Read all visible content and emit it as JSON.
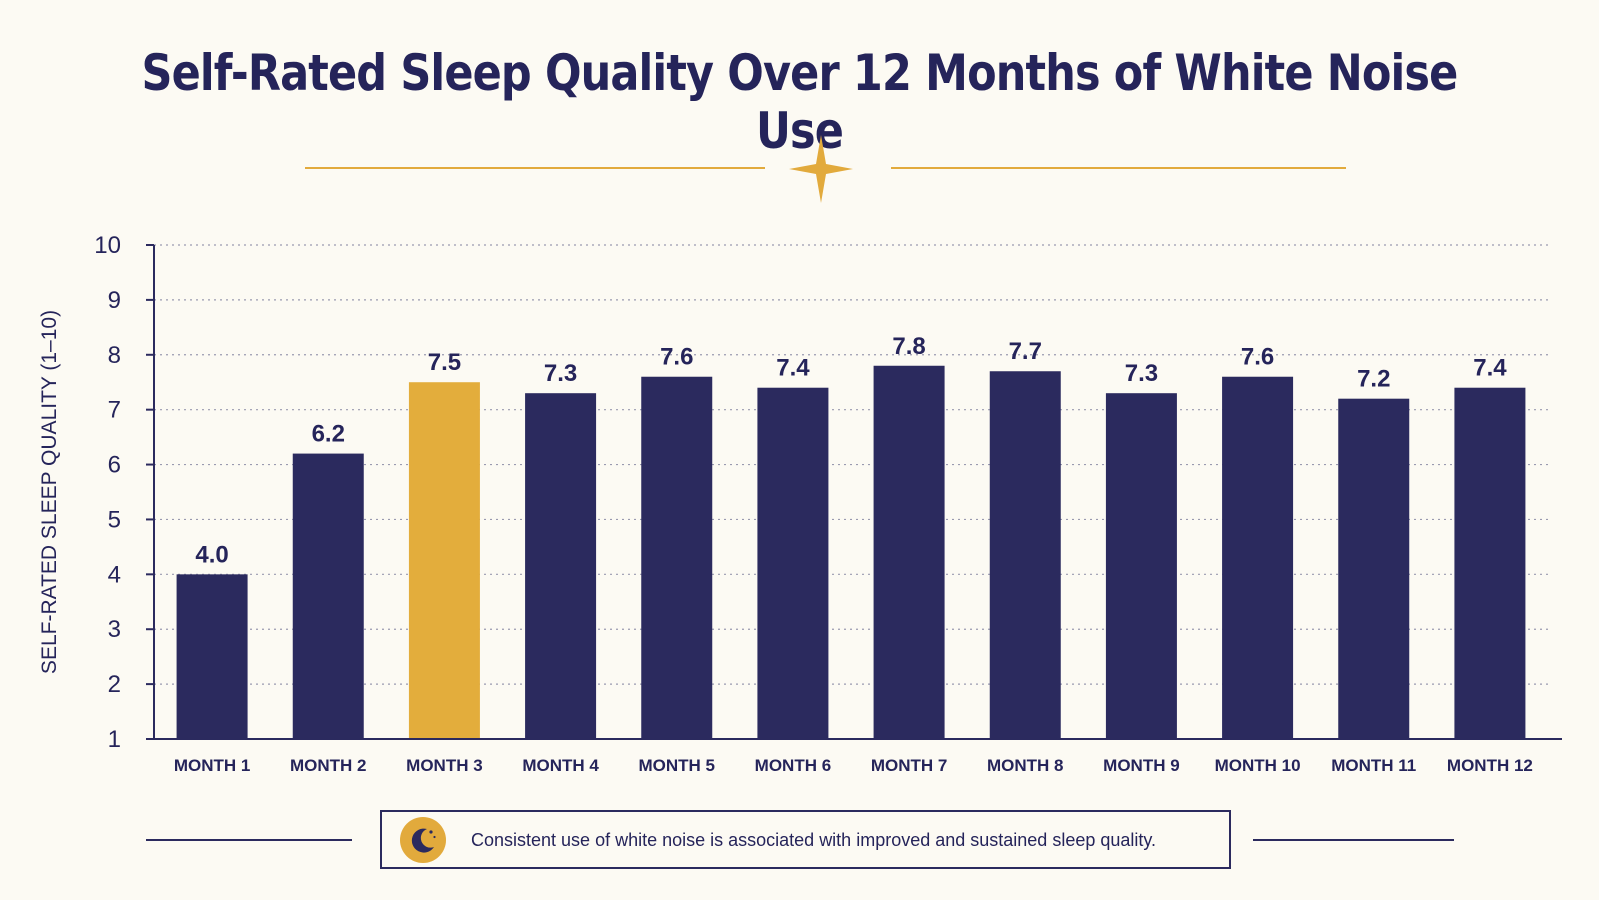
{
  "colors": {
    "background": "#fcfaf3",
    "bar": "#2b2a5e",
    "highlight": "#e3ad3c",
    "text": "#25245a",
    "grid": "#9a9ab0"
  },
  "icons": {
    "divider": "four-point-star-icon",
    "callout": "crescent-moon-icon"
  },
  "callout": {
    "text": "Consistent use of white noise is associated with improved and sustained sleep quality."
  },
  "chart_data": {
    "type": "bar",
    "title": "Self-Rated Sleep Quality Over 12 Months of White Noise Use",
    "xlabel": "",
    "ylabel": "SELF-RATED SLEEP QUALITY (1–10)",
    "ylim": [
      1,
      10
    ],
    "yticks": [
      "1",
      "2",
      "3",
      "4",
      "5",
      "6",
      "7",
      "8",
      "9",
      "10"
    ],
    "grid": true,
    "categories": [
      "MONTH 1",
      "MONTH 2",
      "MONTH 3",
      "MONTH 4",
      "MONTH 5",
      "MONTH 6",
      "MONTH 7",
      "MONTH 8",
      "MONTH 9",
      "MONTH 10",
      "MONTH 11",
      "MONTH 12"
    ],
    "values": [
      4.0,
      6.2,
      7.5,
      7.3,
      7.6,
      7.4,
      7.8,
      7.7,
      7.3,
      7.6,
      7.2,
      7.4
    ],
    "data_labels": [
      "4.0",
      "6.2",
      "7.5",
      "7.3",
      "7.6",
      "7.4",
      "7.8",
      "7.7",
      "7.3",
      "7.6",
      "7.2",
      "7.4"
    ],
    "highlighted_category": "MONTH 3"
  }
}
